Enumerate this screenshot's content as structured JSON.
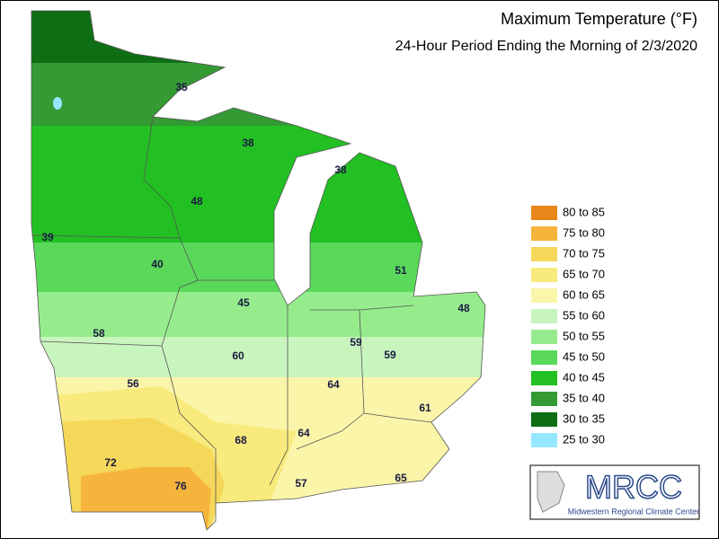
{
  "header": {
    "title": "Maximum Temperature (°F)",
    "subtitle": "24-Hour Period Ending the Morning of 2/3/2020"
  },
  "legend": [
    {
      "label": "80 to 85",
      "color": "#e8861a"
    },
    {
      "label": "75 to 80",
      "color": "#f5b43c"
    },
    {
      "label": "70 to 75",
      "color": "#f5d75a"
    },
    {
      "label": "65 to 70",
      "color": "#f8ea7c"
    },
    {
      "label": "60 to 65",
      "color": "#faf5a8"
    },
    {
      "label": "55 to 60",
      "color": "#c8f5be"
    },
    {
      "label": "50 to 55",
      "color": "#96ec8c"
    },
    {
      "label": "45 to 50",
      "color": "#5ad85a"
    },
    {
      "label": "40 to 45",
      "color": "#22c022"
    },
    {
      "label": "35 to 40",
      "color": "#349a34"
    },
    {
      "label": "30 to 35",
      "color": "#0f6e14"
    },
    {
      "label": "25 to 30",
      "color": "#96e6ff"
    }
  ],
  "station_labels": [
    35,
    38,
    38,
    48,
    39,
    40,
    51,
    45,
    48,
    58,
    59,
    60,
    59,
    56,
    64,
    61,
    68,
    64,
    72,
    76,
    57,
    65
  ],
  "logo": {
    "name": "MRCC",
    "caption": "Midwestern Regional Climate Center"
  }
}
